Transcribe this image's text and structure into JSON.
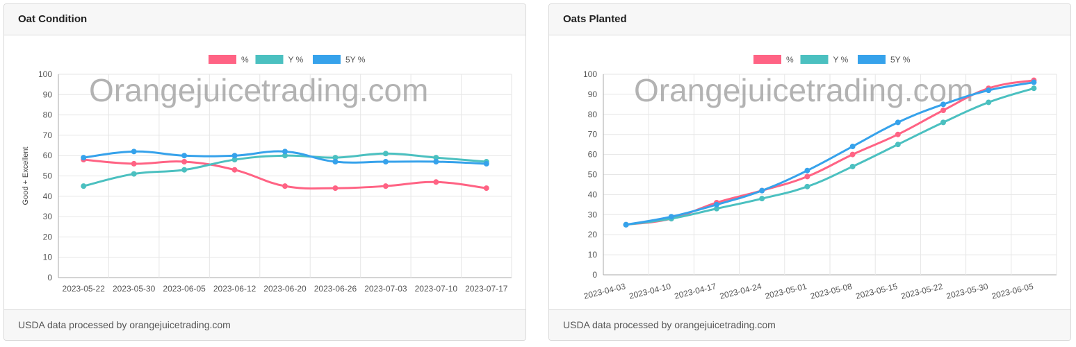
{
  "cards": [
    {
      "title": "Oat Condition",
      "footer": "USDA data processed by orangejuicetrading.com",
      "watermark": "Orangejuicetrading.com"
    },
    {
      "title": "Oats Planted",
      "footer": "USDA data processed by orangejuicetrading.com",
      "watermark": "Orangejuicetrading.com"
    }
  ],
  "chart_data": [
    {
      "type": "line",
      "title": "Oat Condition",
      "xlabel": "",
      "ylabel": "Good + Excellent",
      "ylim": [
        0,
        100
      ],
      "yticks": [
        0,
        10,
        20,
        30,
        40,
        50,
        60,
        70,
        80,
        90,
        100
      ],
      "grid": true,
      "legend_position": "top",
      "x_rotated": false,
      "categories": [
        "2023-05-22",
        "2023-05-30",
        "2023-06-05",
        "2023-06-12",
        "2023-06-20",
        "2023-06-26",
        "2023-07-03",
        "2023-07-10",
        "2023-07-17"
      ],
      "series": [
        {
          "name": "%",
          "color": "#ff6384",
          "values": [
            58,
            56,
            57,
            53,
            45,
            44,
            45,
            47,
            44
          ]
        },
        {
          "name": "Y %",
          "color": "#4bc0c0",
          "values": [
            45,
            51,
            53,
            58,
            60,
            59,
            61,
            59,
            57
          ]
        },
        {
          "name": "5Y %",
          "color": "#36a2eb",
          "values": [
            59,
            62,
            60,
            60,
            62,
            57,
            57,
            57,
            56
          ]
        }
      ]
    },
    {
      "type": "line",
      "title": "Oats Planted",
      "xlabel": "",
      "ylabel": "",
      "ylim": [
        0,
        100
      ],
      "yticks": [
        0,
        10,
        20,
        30,
        40,
        50,
        60,
        70,
        80,
        90,
        100
      ],
      "grid": true,
      "legend_position": "top",
      "x_rotated": true,
      "categories": [
        "2023-04-03",
        "2023-04-10",
        "2023-04-17",
        "2023-04-24",
        "2023-05-01",
        "2023-05-08",
        "2023-05-15",
        "2023-05-22",
        "2023-05-30",
        "2023-06-05"
      ],
      "series": [
        {
          "name": "%",
          "color": "#ff6384",
          "values": [
            25,
            28,
            36,
            42,
            49,
            60,
            70,
            82,
            93,
            97
          ]
        },
        {
          "name": "Y %",
          "color": "#4bc0c0",
          "values": [
            25,
            28,
            33,
            38,
            44,
            54,
            65,
            76,
            86,
            93
          ]
        },
        {
          "name": "5Y %",
          "color": "#36a2eb",
          "values": [
            25,
            29,
            35,
            42,
            52,
            64,
            76,
            85,
            92,
            96
          ]
        }
      ]
    }
  ]
}
